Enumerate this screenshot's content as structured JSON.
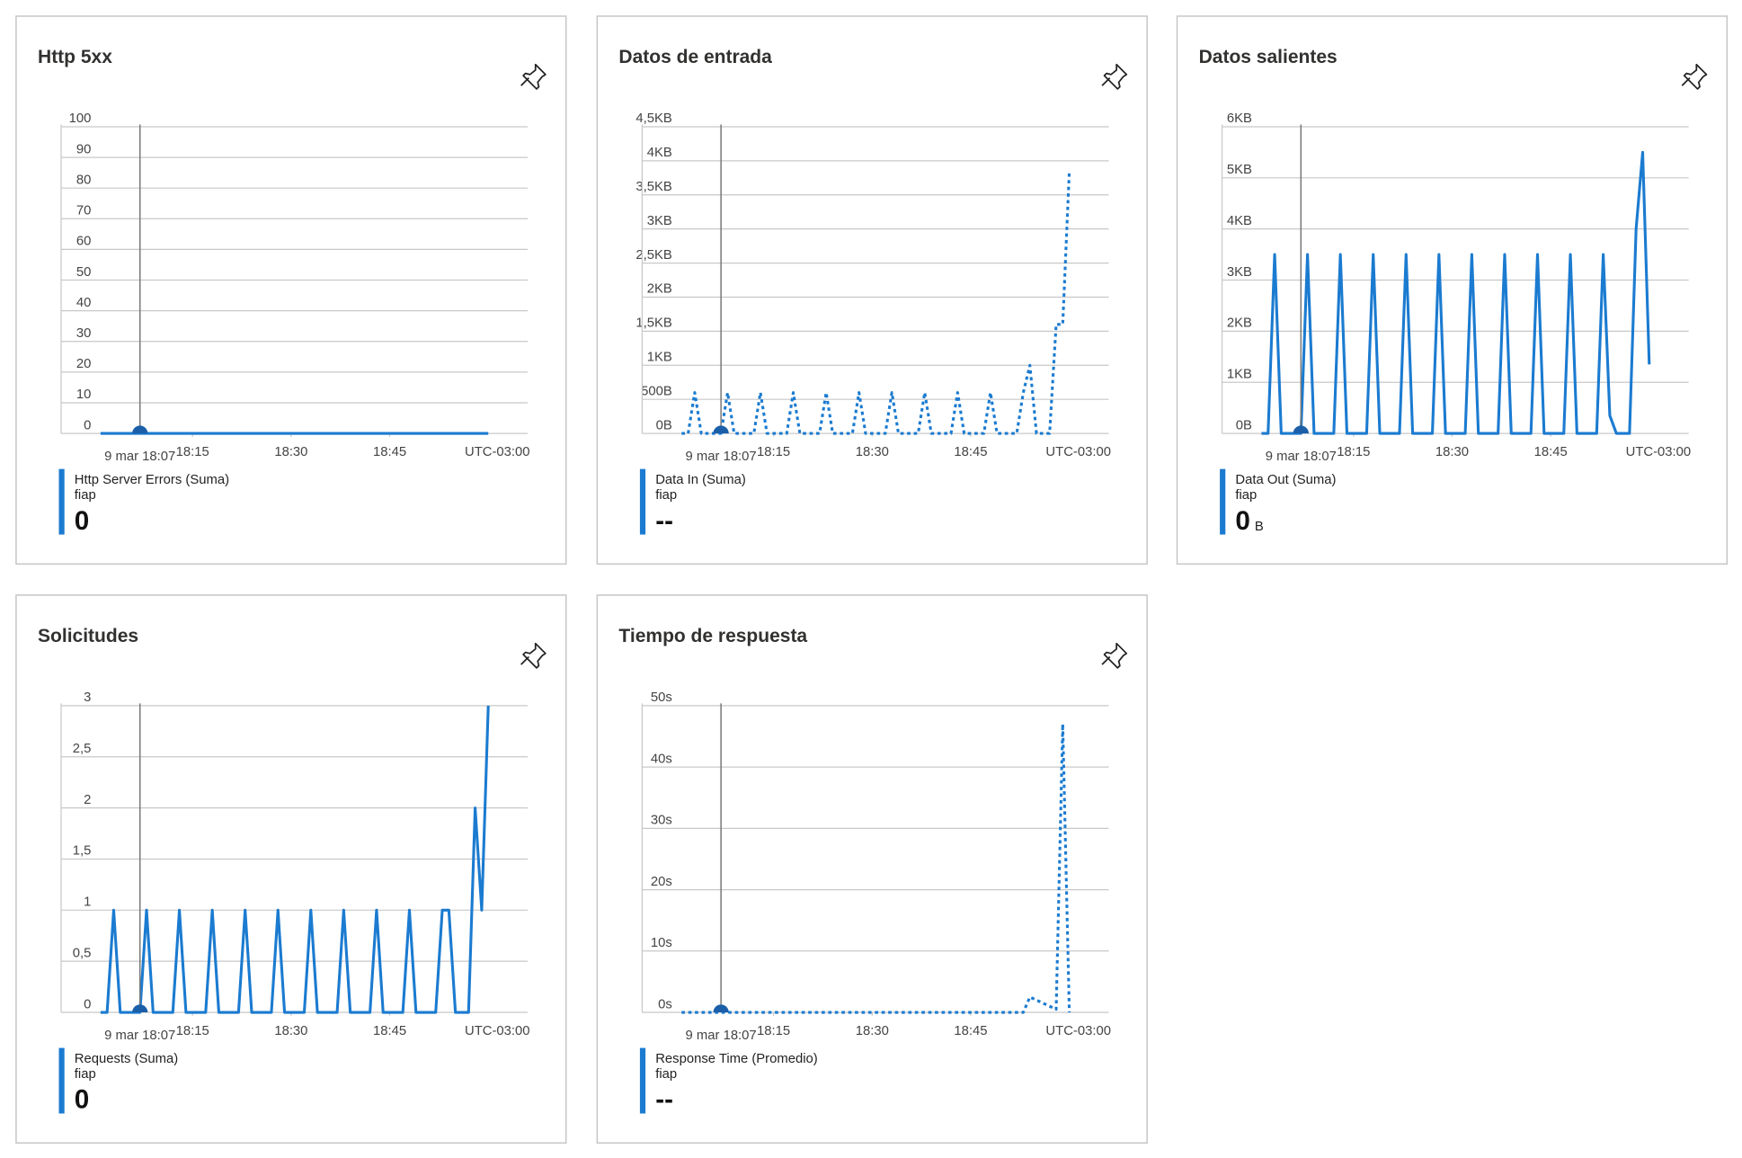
{
  "chart_data": [
    {
      "type": "line",
      "title": "Http 5xx",
      "x": [
        1,
        2,
        3,
        4,
        5,
        6,
        7,
        8,
        9,
        10,
        11,
        12,
        13,
        14,
        15,
        16,
        17,
        18,
        19,
        20,
        21,
        22,
        23,
        24,
        25,
        26,
        27,
        28,
        29,
        30,
        31,
        32,
        33,
        34,
        35,
        36,
        37,
        38,
        39,
        40,
        41,
        42,
        43,
        44,
        45,
        46,
        47,
        48,
        49,
        50,
        51,
        52,
        53,
        54,
        55,
        56,
        57,
        58,
        59,
        60
      ],
      "series": [
        {
          "name": "Http Server Errors (Suma)",
          "resource": "fiap",
          "summary": 0,
          "color": "#1b7bd0",
          "line_style": "solid",
          "values": [
            0,
            0,
            0,
            0,
            0,
            0,
            0,
            0,
            0,
            0,
            0,
            0,
            0,
            0,
            0,
            0,
            0,
            0,
            0,
            0,
            0,
            0,
            0,
            0,
            0,
            0,
            0,
            0,
            0,
            0,
            0,
            0,
            0,
            0,
            0,
            0,
            0,
            0,
            0,
            0,
            0,
            0,
            0,
            0,
            0,
            0,
            0,
            0,
            0,
            0,
            0,
            0,
            0,
            0,
            0,
            0,
            0,
            0,
            0,
            0
          ]
        }
      ],
      "xlim": [
        -5,
        66
      ],
      "xticks": [
        {
          "value": 15,
          "label": "18:15"
        },
        {
          "value": 30,
          "label": "18:30"
        },
        {
          "value": 45,
          "label": "18:45"
        }
      ],
      "ylim": [
        0,
        100
      ],
      "yticks": [
        0,
        10,
        20,
        30,
        40,
        50,
        60,
        70,
        80,
        90,
        100
      ],
      "cursor": {
        "x": 7,
        "label": "9 mar 18:07"
      },
      "timezone": "UTC-03:00",
      "grid": true
    },
    {
      "type": "line",
      "title": "Datos de entrada",
      "x": [
        1,
        2,
        3,
        4,
        5,
        6,
        7,
        8,
        9,
        10,
        11,
        12,
        13,
        14,
        15,
        16,
        17,
        18,
        19,
        20,
        21,
        22,
        23,
        24,
        25,
        26,
        27,
        28,
        29,
        30,
        31,
        32,
        33,
        34,
        35,
        36,
        37,
        38,
        39,
        40,
        41,
        42,
        43,
        44,
        45,
        46,
        47,
        48,
        49,
        50,
        51,
        52,
        53,
        54,
        55,
        56,
        57,
        58,
        59,
        60
      ],
      "series": [
        {
          "name": "Data In (Suma)",
          "resource": "fiap",
          "summary": "--",
          "color": "#1b7bd0",
          "line_style": "dotted",
          "values": [
            0,
            0,
            600,
            0,
            0,
            0,
            0,
            600,
            0,
            0,
            0,
            0,
            600,
            0,
            0,
            0,
            0,
            600,
            0,
            0,
            0,
            0,
            600,
            0,
            0,
            0,
            0,
            600,
            0,
            0,
            0,
            0,
            600,
            0,
            0,
            0,
            0,
            600,
            0,
            0,
            0,
            0,
            600,
            0,
            0,
            0,
            0,
            600,
            0,
            0,
            0,
            0,
            600,
            1000,
            0,
            0,
            0,
            1600,
            1600,
            3850
          ]
        }
      ],
      "xlim": [
        -5,
        66
      ],
      "xticks": [
        {
          "value": 15,
          "label": "18:15"
        },
        {
          "value": 30,
          "label": "18:30"
        },
        {
          "value": 45,
          "label": "18:45"
        }
      ],
      "ylim": [
        0,
        4500
      ],
      "yticks": [
        {
          "value": 0,
          "label": "0B"
        },
        {
          "value": 500,
          "label": "500B"
        },
        {
          "value": 1000,
          "label": "1KB"
        },
        {
          "value": 1500,
          "label": "1,5KB"
        },
        {
          "value": 2000,
          "label": "2KB"
        },
        {
          "value": 2500,
          "label": "2,5KB"
        },
        {
          "value": 3000,
          "label": "3KB"
        },
        {
          "value": 3500,
          "label": "3,5KB"
        },
        {
          "value": 4000,
          "label": "4KB"
        },
        {
          "value": 4500,
          "label": "4,5KB"
        }
      ],
      "cursor": {
        "x": 7,
        "label": "9 mar 18:07"
      },
      "timezone": "UTC-03:00",
      "grid": true
    },
    {
      "type": "line",
      "title": "Datos salientes",
      "x": [
        1,
        2,
        3,
        4,
        5,
        6,
        7,
        8,
        9,
        10,
        11,
        12,
        13,
        14,
        15,
        16,
        17,
        18,
        19,
        20,
        21,
        22,
        23,
        24,
        25,
        26,
        27,
        28,
        29,
        30,
        31,
        32,
        33,
        34,
        35,
        36,
        37,
        38,
        39,
        40,
        41,
        42,
        43,
        44,
        45,
        46,
        47,
        48,
        49,
        50,
        51,
        52,
        53,
        54,
        55,
        56,
        57,
        58,
        59,
        60
      ],
      "series": [
        {
          "name": "Data Out (Suma)",
          "resource": "fiap",
          "summary": 0,
          "summary_unit": "B",
          "color": "#1b7bd0",
          "line_style": "solid",
          "values": [
            0,
            0,
            3500,
            0,
            0,
            0,
            0,
            3500,
            0,
            0,
            0,
            0,
            3500,
            0,
            0,
            0,
            0,
            3500,
            0,
            0,
            0,
            0,
            3500,
            0,
            0,
            0,
            0,
            3500,
            0,
            0,
            0,
            0,
            3500,
            0,
            0,
            0,
            0,
            3500,
            0,
            0,
            0,
            0,
            3500,
            0,
            0,
            0,
            0,
            3500,
            0,
            0,
            0,
            0,
            3500,
            350,
            0,
            0,
            0,
            4000,
            5500,
            1350
          ]
        }
      ],
      "xlim": [
        -5,
        66
      ],
      "xticks": [
        {
          "value": 15,
          "label": "18:15"
        },
        {
          "value": 30,
          "label": "18:30"
        },
        {
          "value": 45,
          "label": "18:45"
        }
      ],
      "ylim": [
        0,
        6000
      ],
      "yticks": [
        {
          "value": 0,
          "label": "0B"
        },
        {
          "value": 1000,
          "label": "1KB"
        },
        {
          "value": 2000,
          "label": "2KB"
        },
        {
          "value": 3000,
          "label": "3KB"
        },
        {
          "value": 4000,
          "label": "4KB"
        },
        {
          "value": 5000,
          "label": "5KB"
        },
        {
          "value": 6000,
          "label": "6KB"
        }
      ],
      "cursor": {
        "x": 7,
        "label": "9 mar 18:07"
      },
      "timezone": "UTC-03:00",
      "grid": true
    },
    {
      "type": "line",
      "title": "Solicitudes",
      "x": [
        1,
        2,
        3,
        4,
        5,
        6,
        7,
        8,
        9,
        10,
        11,
        12,
        13,
        14,
        15,
        16,
        17,
        18,
        19,
        20,
        21,
        22,
        23,
        24,
        25,
        26,
        27,
        28,
        29,
        30,
        31,
        32,
        33,
        34,
        35,
        36,
        37,
        38,
        39,
        40,
        41,
        42,
        43,
        44,
        45,
        46,
        47,
        48,
        49,
        50,
        51,
        52,
        53,
        54,
        55,
        56,
        57,
        58,
        59,
        60
      ],
      "series": [
        {
          "name": "Requests (Suma)",
          "resource": "fiap",
          "summary": 0,
          "color": "#1b7bd0",
          "line_style": "solid",
          "values": [
            0,
            0,
            1,
            0,
            0,
            0,
            0,
            1,
            0,
            0,
            0,
            0,
            1,
            0,
            0,
            0,
            0,
            1,
            0,
            0,
            0,
            0,
            1,
            0,
            0,
            0,
            0,
            1,
            0,
            0,
            0,
            0,
            1,
            0,
            0,
            0,
            0,
            1,
            0,
            0,
            0,
            0,
            1,
            0,
            0,
            0,
            0,
            1,
            0,
            0,
            0,
            0,
            1,
            1,
            0,
            0,
            0,
            2,
            1,
            3
          ]
        }
      ],
      "xlim": [
        -5,
        66
      ],
      "xticks": [
        {
          "value": 15,
          "label": "18:15"
        },
        {
          "value": 30,
          "label": "18:30"
        },
        {
          "value": 45,
          "label": "18:45"
        }
      ],
      "ylim": [
        0,
        3
      ],
      "yticks": [
        0,
        {
          "value": 0.5,
          "label": "0,5"
        },
        1,
        {
          "value": 1.5,
          "label": "1,5"
        },
        2,
        {
          "value": 2.5,
          "label": "2,5"
        },
        3
      ],
      "cursor": {
        "x": 7,
        "label": "9 mar 18:07"
      },
      "timezone": "UTC-03:00",
      "grid": true
    },
    {
      "type": "line",
      "title": "Tiempo de respuesta",
      "x": [
        1,
        2,
        3,
        4,
        5,
        6,
        7,
        8,
        9,
        10,
        11,
        12,
        13,
        14,
        15,
        16,
        17,
        18,
        19,
        20,
        21,
        22,
        23,
        24,
        25,
        26,
        27,
        28,
        29,
        30,
        31,
        32,
        33,
        34,
        35,
        36,
        37,
        38,
        39,
        40,
        41,
        42,
        43,
        44,
        45,
        46,
        47,
        48,
        49,
        50,
        51,
        52,
        53,
        54,
        55,
        56,
        57,
        58,
        59,
        60
      ],
      "series": [
        {
          "name": "Response Time (Promedio)",
          "resource": "fiap",
          "summary": "--",
          "color": "#1b7bd0",
          "line_style": "dotted",
          "values": [
            0,
            0,
            0,
            0,
            0,
            0,
            0,
            0,
            0,
            0,
            0,
            0,
            0,
            0,
            0,
            0,
            0,
            0,
            0,
            0,
            0,
            0,
            0,
            0,
            0,
            0,
            0,
            0,
            0,
            0,
            0,
            0,
            0,
            0,
            0,
            0,
            0,
            0,
            0,
            0,
            0,
            0,
            0,
            0,
            0,
            0,
            0,
            0,
            0,
            0,
            0,
            0,
            0,
            2.5,
            2,
            1.5,
            1,
            0.5,
            47,
            0
          ]
        }
      ],
      "xlim": [
        -5,
        66
      ],
      "xticks": [
        {
          "value": 15,
          "label": "18:15"
        },
        {
          "value": 30,
          "label": "18:30"
        },
        {
          "value": 45,
          "label": "18:45"
        }
      ],
      "ylim": [
        0,
        50
      ],
      "yticks": [
        {
          "value": 0,
          "label": "0s"
        },
        {
          "value": 10,
          "label": "10s"
        },
        {
          "value": 20,
          "label": "20s"
        },
        {
          "value": 30,
          "label": "30s"
        },
        {
          "value": 40,
          "label": "40s"
        },
        {
          "value": 50,
          "label": "50s"
        }
      ],
      "cursor": {
        "x": 7,
        "label": "9 mar 18:07"
      },
      "timezone": "UTC-03:00",
      "grid": true
    }
  ]
}
